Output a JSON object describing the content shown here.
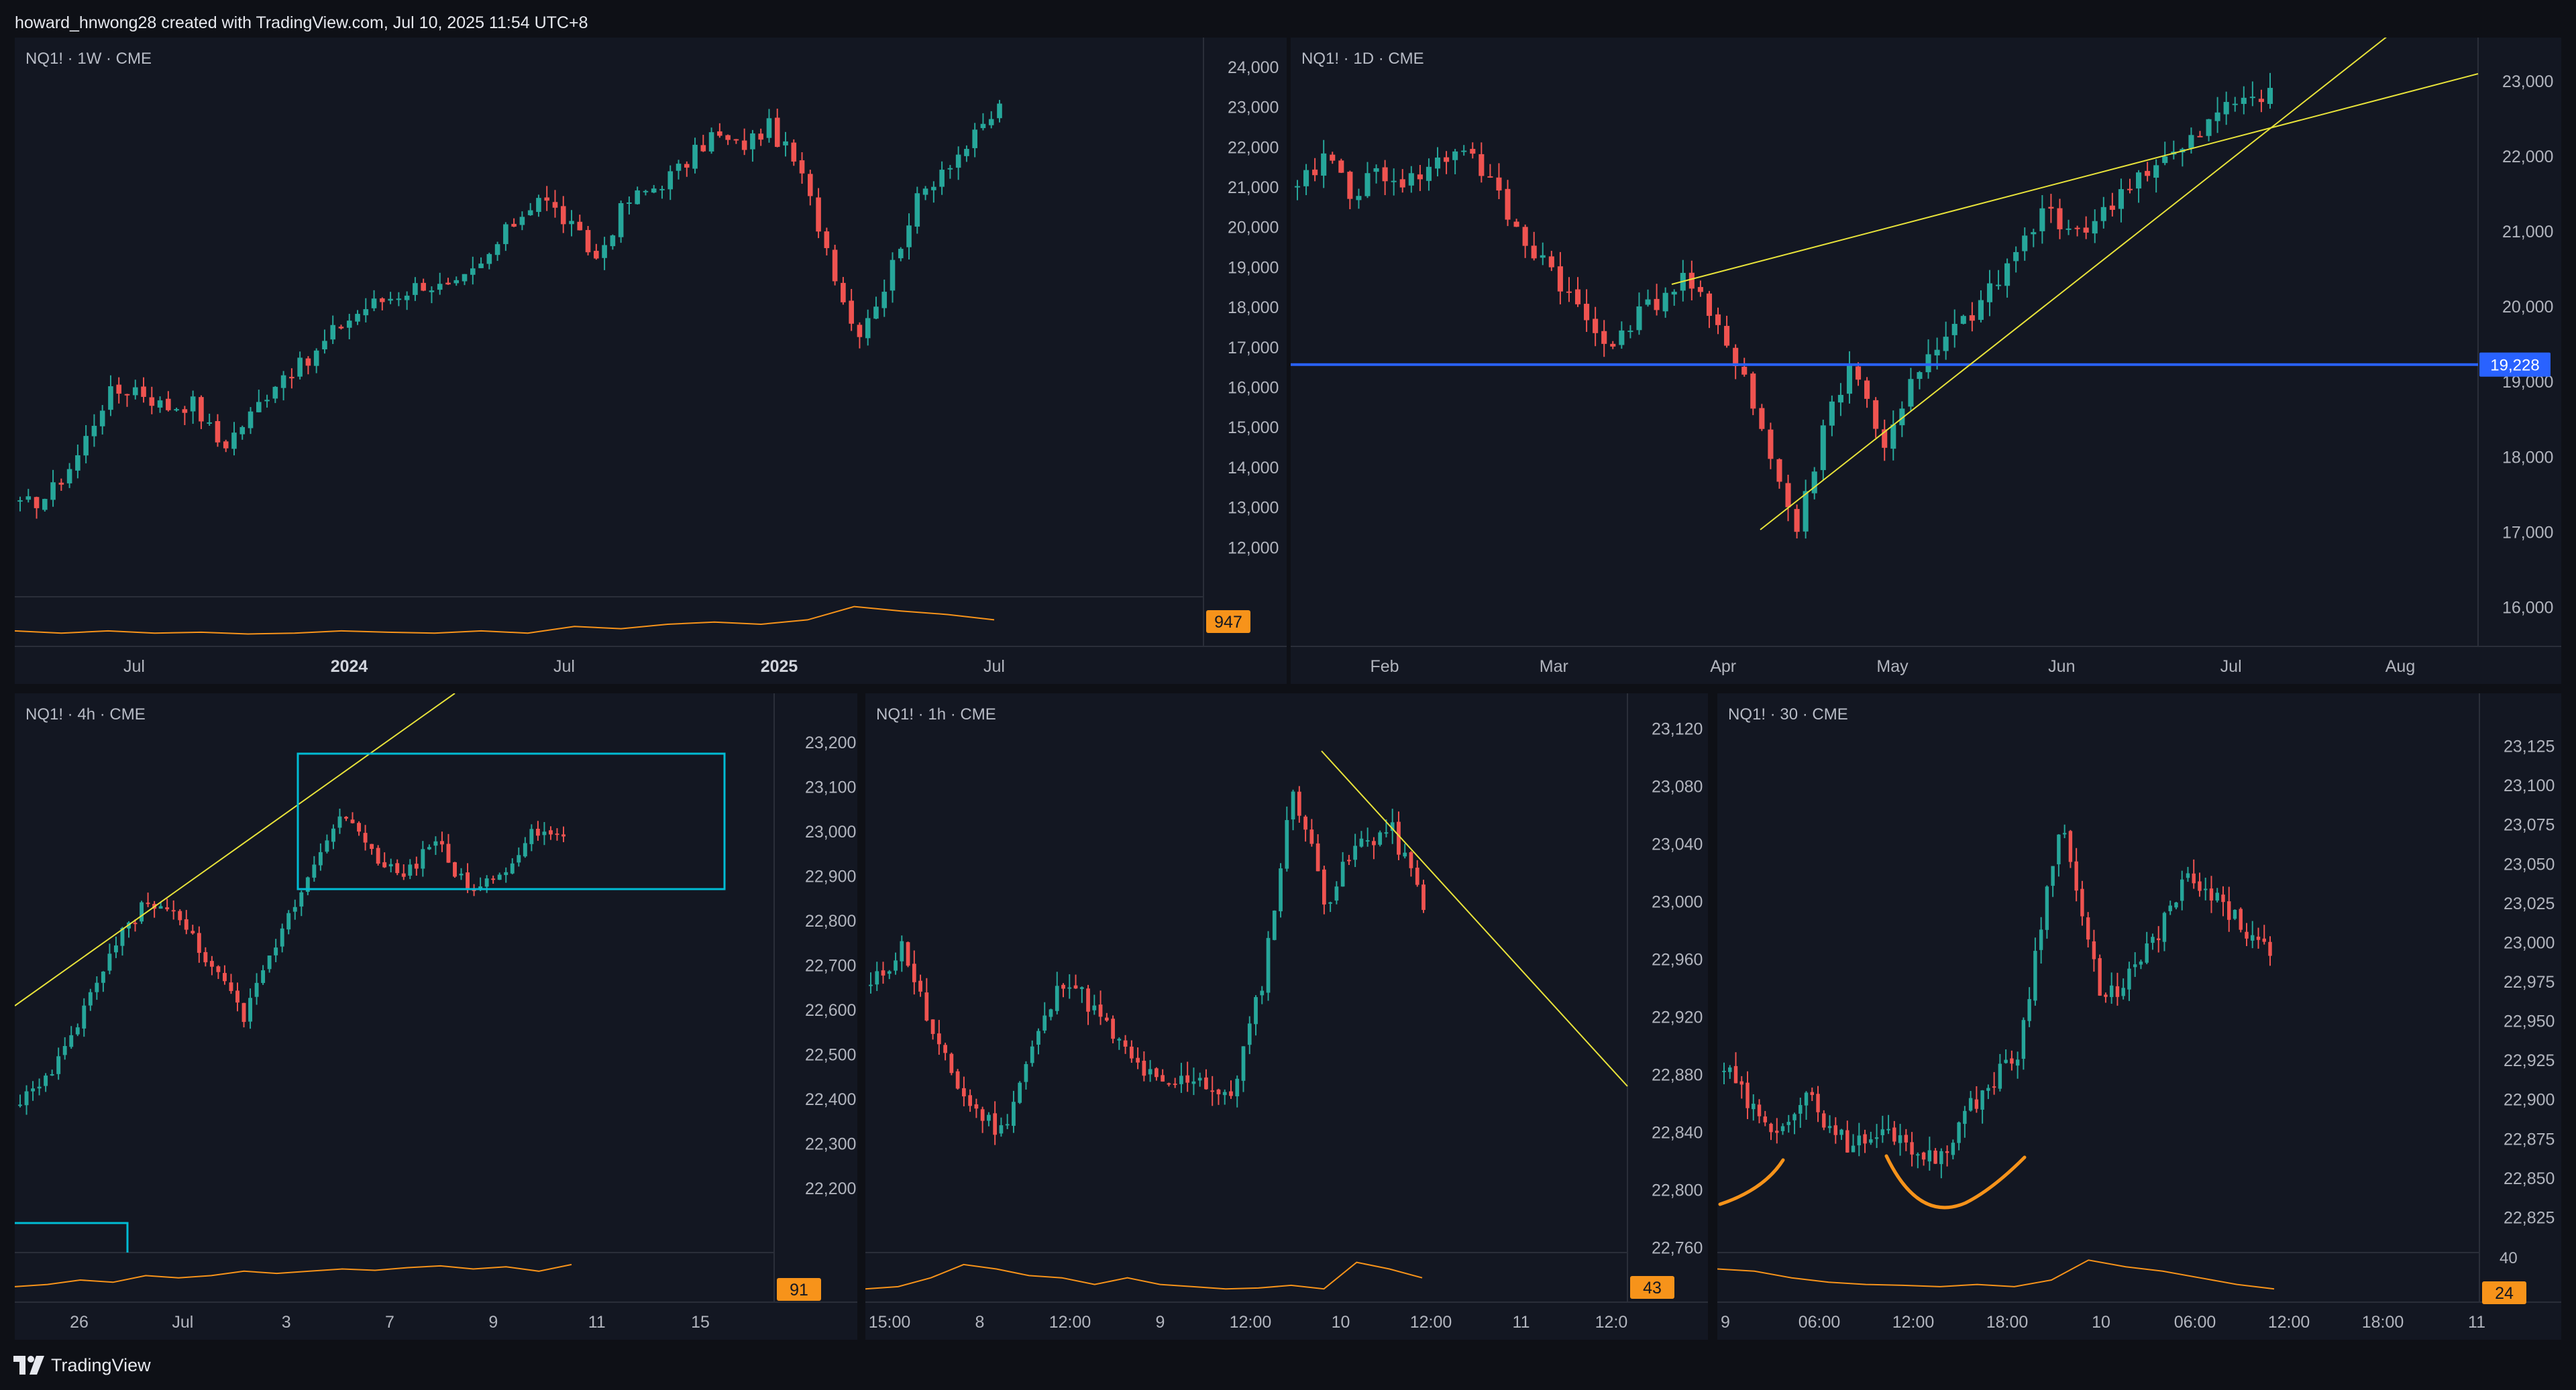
{
  "header": {
    "text": "howard_hnwong28 created with TradingView.com, Jul 10, 2025 11:54 UTC+8"
  },
  "footer": {
    "brand": "TradingView"
  },
  "colors": {
    "up": "#26a69a",
    "down": "#ef5350",
    "volume_line": "#f7931a",
    "badge": "#f7931a",
    "trendline": "#e8e33a",
    "hline": "#2962ff",
    "box": "#00bcd4",
    "arc": "#f7931a",
    "axis_text": "#b2b5be",
    "panel_bg": "#131722"
  },
  "chart_data": [
    {
      "id": "weekly",
      "type": "candlestick",
      "title": "NQ1! · 1W · CME",
      "ylim": [
        11000,
        24400
      ],
      "y_ticks": [
        "12,000",
        "13,000",
        "14,000",
        "15,000",
        "16,000",
        "17,000",
        "18,000",
        "19,000",
        "20,000",
        "21,000",
        "22,000",
        "23,000",
        "24,000"
      ],
      "x_labels": [
        "Jul",
        "2024",
        "Jul",
        "2025",
        "Jul"
      ],
      "close_path": [
        13000,
        13300,
        14300,
        15800,
        16000,
        15500,
        15600,
        14500,
        15300,
        16300,
        16600,
        17500,
        18000,
        18300,
        18600,
        18400,
        19000,
        20000,
        20800,
        20100,
        19200,
        20600,
        21000,
        21500,
        22300,
        22000,
        22500,
        21500,
        19500,
        17300,
        18500,
        20500,
        21500,
        22100,
        23000
      ],
      "volume_indicator": {
        "badge": "947",
        "path": [
          0.35,
          0.3,
          0.35,
          0.3,
          0.32,
          0.28,
          0.3,
          0.35,
          0.32,
          0.3,
          0.35,
          0.3,
          0.45,
          0.4,
          0.5,
          0.55,
          0.5,
          0.6,
          0.9,
          0.8,
          0.72,
          0.6
        ]
      }
    },
    {
      "id": "daily",
      "type": "candlestick",
      "title": "NQ1! · 1D · CME",
      "ylim": [
        15550,
        23400
      ],
      "y_ticks": [
        "16,000",
        "17,000",
        "18,000",
        "19,000",
        "20,000",
        "21,000",
        "22,000",
        "23,000"
      ],
      "x_labels": [
        "Feb",
        "Mar",
        "Apr",
        "May",
        "Jun",
        "Jul",
        "Aug"
      ],
      "close_path": [
        21500,
        22050,
        21500,
        21800,
        21650,
        21900,
        22150,
        21600,
        20900,
        20600,
        20000,
        19500,
        19800,
        20100,
        20400,
        19700,
        19200,
        18000,
        17000,
        18500,
        19300,
        18100,
        18900,
        19400,
        19800,
        20200,
        20800,
        21300,
        21000,
        21200,
        21700,
        21900,
        22100,
        22500,
        22800,
        22900
      ],
      "price_line": {
        "value": 19228,
        "label": "19,228"
      }
    },
    {
      "id": "h4",
      "type": "candlestick",
      "title": "NQ1! · 4h · CME",
      "ylim": [
        22080,
        23280
      ],
      "y_ticks": [
        "22,200",
        "22,300",
        "22,400",
        "22,500",
        "22,600",
        "22,700",
        "22,800",
        "22,900",
        "23,000",
        "23,100",
        "23,200"
      ],
      "x_labels": [
        "26",
        "Jul",
        "3",
        "7",
        "9",
        "11",
        "15"
      ],
      "close_path": [
        22400,
        22450,
        22600,
        22750,
        22850,
        22800,
        22700,
        22580,
        22750,
        22900,
        23050,
        22950,
        22900,
        22980,
        22870,
        22900,
        23000,
        22990
      ],
      "volume_indicator": {
        "badge": "91",
        "path": [
          0.35,
          0.4,
          0.5,
          0.45,
          0.6,
          0.55,
          0.6,
          0.7,
          0.65,
          0.7,
          0.75,
          0.72,
          0.78,
          0.82,
          0.75,
          0.8,
          0.7,
          0.85
        ]
      }
    },
    {
      "id": "h1",
      "type": "candlestick",
      "title": "NQ1! · 1h · CME",
      "ylim": [
        22735,
        23135
      ],
      "y_ticks": [
        "22,760",
        "22,800",
        "22,840",
        "22,880",
        "22,920",
        "22,960",
        "23,000",
        "23,040",
        "23,080",
        "23,120"
      ],
      "x_labels": [
        "15:00",
        "8",
        "12:00",
        "9",
        "12:00",
        "10",
        "12:00",
        "11",
        "12:0"
      ],
      "close_path": [
        22940,
        22970,
        22900,
        22860,
        22840,
        22900,
        22950,
        22920,
        22890,
        22870,
        22880,
        22860,
        22940,
        23080,
        23000,
        23040,
        23050,
        23000
      ],
      "volume_indicator": {
        "badge": "43",
        "path": [
          0.3,
          0.35,
          0.55,
          0.85,
          0.75,
          0.6,
          0.55,
          0.4,
          0.55,
          0.4,
          0.35,
          0.3,
          0.32,
          0.38,
          0.3,
          0.9,
          0.75,
          0.55
        ]
      }
    },
    {
      "id": "m30",
      "type": "candlestick",
      "title": "NQ1! · 30 · CME",
      "ylim": [
        22800,
        23150
      ],
      "y_ticks": [
        "22,825",
        "22,850",
        "22,875",
        "22,900",
        "22,925",
        "22,950",
        "22,975",
        "23,000",
        "23,025",
        "23,050",
        "23,075",
        "23,100",
        "23,125"
      ],
      "x_labels": [
        "9",
        "06:00",
        "12:00",
        "18:00",
        "10",
        "06:00",
        "12:00",
        "18:00",
        "11"
      ],
      "close_path": [
        22920,
        22880,
        22900,
        22870,
        22880,
        22860,
        22900,
        22930,
        23080,
        22960,
        22990,
        23040,
        23020,
        22990
      ],
      "volume_indicator": {
        "badge": "24",
        "label": "40",
        "path": [
          0.75,
          0.7,
          0.55,
          0.45,
          0.4,
          0.38,
          0.35,
          0.4,
          0.35,
          0.5,
          0.95,
          0.8,
          0.7,
          0.55,
          0.4,
          0.3
        ]
      }
    }
  ]
}
